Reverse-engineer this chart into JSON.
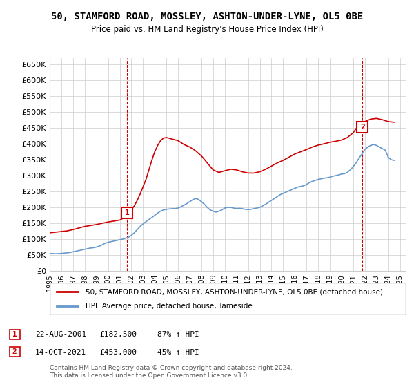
{
  "title": "50, STAMFORD ROAD, MOSSLEY, ASHTON-UNDER-LYNE, OL5 0BE",
  "subtitle": "Price paid vs. HM Land Registry's House Price Index (HPI)",
  "ylabel_ticks": [
    "£0",
    "£50K",
    "£100K",
    "£150K",
    "£200K",
    "£250K",
    "£300K",
    "£350K",
    "£400K",
    "£450K",
    "£500K",
    "£550K",
    "£600K",
    "£650K"
  ],
  "ytick_values": [
    0,
    50000,
    100000,
    150000,
    200000,
    250000,
    300000,
    350000,
    400000,
    450000,
    500000,
    550000,
    600000,
    650000
  ],
  "ylim": [
    0,
    670000
  ],
  "xlim_start": 1995.0,
  "xlim_end": 2025.5,
  "sale1_date": 2001.64,
  "sale1_price": 182500,
  "sale2_date": 2021.79,
  "sale2_price": 453000,
  "sale1_label": "1",
  "sale2_label": "2",
  "red_color": "#cc0000",
  "blue_color": "#6699cc",
  "dashed_red": "#cc0000",
  "dashed_blue": "#6699cc",
  "grid_color": "#cccccc",
  "bg_color": "#ffffff",
  "legend_label_red": "50, STAMFORD ROAD, MOSSLEY, ASHTON-UNDER-LYNE, OL5 0BE (detached house)",
  "legend_label_blue": "HPI: Average price, detached house, Tameside",
  "table_row1": [
    "1",
    "22-AUG-2001",
    "£182,500",
    "87% ↑ HPI"
  ],
  "table_row2": [
    "2",
    "14-OCT-2021",
    "£453,000",
    "45% ↑ HPI"
  ],
  "footer": "Contains HM Land Registry data © Crown copyright and database right 2024.\nThis data is licensed under the Open Government Licence v3.0.",
  "hpi_data": {
    "years": [
      1995.0,
      1995.25,
      1995.5,
      1995.75,
      1996.0,
      1996.25,
      1996.5,
      1996.75,
      1997.0,
      1997.25,
      1997.5,
      1997.75,
      1998.0,
      1998.25,
      1998.5,
      1998.75,
      1999.0,
      1999.25,
      1999.5,
      1999.75,
      2000.0,
      2000.25,
      2000.5,
      2000.75,
      2001.0,
      2001.25,
      2001.5,
      2001.75,
      2002.0,
      2002.25,
      2002.5,
      2002.75,
      2003.0,
      2003.25,
      2003.5,
      2003.75,
      2004.0,
      2004.25,
      2004.5,
      2004.75,
      2005.0,
      2005.25,
      2005.5,
      2005.75,
      2006.0,
      2006.25,
      2006.5,
      2006.75,
      2007.0,
      2007.25,
      2007.5,
      2007.75,
      2008.0,
      2008.25,
      2008.5,
      2008.75,
      2009.0,
      2009.25,
      2009.5,
      2009.75,
      2010.0,
      2010.25,
      2010.5,
      2010.75,
      2011.0,
      2011.25,
      2011.5,
      2011.75,
      2012.0,
      2012.25,
      2012.5,
      2012.75,
      2013.0,
      2013.25,
      2013.5,
      2013.75,
      2014.0,
      2014.25,
      2014.5,
      2014.75,
      2015.0,
      2015.25,
      2015.5,
      2015.75,
      2016.0,
      2016.25,
      2016.5,
      2016.75,
      2017.0,
      2017.25,
      2017.5,
      2017.75,
      2018.0,
      2018.25,
      2018.5,
      2018.75,
      2019.0,
      2019.25,
      2019.5,
      2019.75,
      2020.0,
      2020.25,
      2020.5,
      2020.75,
      2021.0,
      2021.25,
      2021.5,
      2021.75,
      2022.0,
      2022.25,
      2022.5,
      2022.75,
      2023.0,
      2023.25,
      2023.5,
      2023.75,
      2024.0,
      2024.25,
      2024.5
    ],
    "values": [
      55000,
      54500,
      54000,
      54500,
      55000,
      56000,
      57000,
      58000,
      60000,
      62000,
      64000,
      66000,
      68000,
      70000,
      72000,
      73000,
      75000,
      78000,
      82000,
      87000,
      90000,
      92000,
      94000,
      96000,
      98000,
      100000,
      103000,
      106000,
      112000,
      120000,
      130000,
      140000,
      148000,
      155000,
      162000,
      168000,
      175000,
      182000,
      188000,
      192000,
      194000,
      195000,
      196000,
      196000,
      198000,
      202000,
      207000,
      212000,
      218000,
      224000,
      228000,
      225000,
      218000,
      210000,
      200000,
      192000,
      188000,
      185000,
      188000,
      192000,
      198000,
      200000,
      200000,
      198000,
      196000,
      197000,
      196000,
      194000,
      193000,
      194000,
      196000,
      198000,
      200000,
      205000,
      210000,
      216000,
      222000,
      228000,
      234000,
      240000,
      244000,
      248000,
      252000,
      256000,
      260000,
      264000,
      266000,
      268000,
      272000,
      278000,
      282000,
      285000,
      288000,
      290000,
      292000,
      293000,
      295000,
      298000,
      300000,
      302000,
      305000,
      306000,
      310000,
      318000,
      328000,
      340000,
      355000,
      368000,
      382000,
      390000,
      395000,
      398000,
      395000,
      390000,
      385000,
      380000,
      358000,
      350000,
      348000
    ]
  },
  "red_data": {
    "years": [
      1995.0,
      1995.5,
      1996.0,
      1996.5,
      1997.0,
      1997.5,
      1998.0,
      1998.5,
      1999.0,
      1999.5,
      2000.0,
      2000.5,
      2001.0,
      2001.25,
      2001.5,
      2001.64,
      2001.75,
      2002.0,
      2002.25,
      2002.5,
      2002.75,
      2003.0,
      2003.25,
      2003.5,
      2003.75,
      2004.0,
      2004.25,
      2004.5,
      2004.75,
      2005.0,
      2005.5,
      2006.0,
      2006.5,
      2007.0,
      2007.5,
      2008.0,
      2008.5,
      2009.0,
      2009.5,
      2010.0,
      2010.5,
      2011.0,
      2011.5,
      2012.0,
      2012.5,
      2013.0,
      2013.5,
      2014.0,
      2014.5,
      2015.0,
      2015.5,
      2016.0,
      2016.5,
      2017.0,
      2017.5,
      2018.0,
      2018.5,
      2019.0,
      2019.5,
      2020.0,
      2020.5,
      2021.0,
      2021.25,
      2021.5,
      2021.64,
      2021.79,
      2021.9,
      2022.0,
      2022.5,
      2023.0,
      2023.5,
      2024.0,
      2024.5
    ],
    "values": [
      120000,
      122000,
      124000,
      126000,
      130000,
      135000,
      140000,
      143000,
      146000,
      150000,
      154000,
      157000,
      160000,
      165000,
      170000,
      182500,
      185000,
      192000,
      205000,
      222000,
      242000,
      265000,
      288000,
      318000,
      348000,
      375000,
      395000,
      410000,
      418000,
      420000,
      415000,
      410000,
      398000,
      390000,
      378000,
      362000,
      340000,
      318000,
      310000,
      315000,
      320000,
      318000,
      312000,
      308000,
      308000,
      312000,
      320000,
      330000,
      340000,
      348000,
      358000,
      368000,
      375000,
      382000,
      390000,
      396000,
      400000,
      405000,
      408000,
      412000,
      420000,
      435000,
      448000,
      460000,
      453000,
      453000,
      462000,
      470000,
      478000,
      480000,
      476000,
      470000,
      468000
    ]
  }
}
